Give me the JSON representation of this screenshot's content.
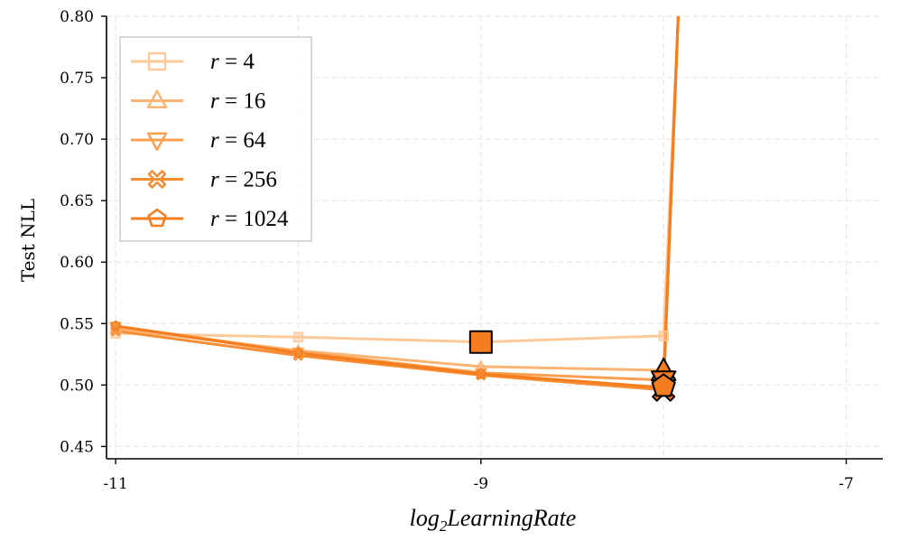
{
  "chart_data": {
    "type": "line",
    "xlabel": "log2LearningRate",
    "xlabel_parts": {
      "base": "log",
      "sub": "2",
      "rest": "LearningRate"
    },
    "ylabel": "Test NLL",
    "xlim": [
      -11.05,
      -6.8
    ],
    "ylim": [
      0.44,
      0.8
    ],
    "x_ticks": [
      -11,
      -9,
      -7
    ],
    "x_tick_labels": [
      "-11",
      "-9",
      "-7"
    ],
    "y_ticks": [
      0.45,
      0.5,
      0.55,
      0.6,
      0.65,
      0.7,
      0.75,
      0.8
    ],
    "y_tick_labels": [
      "0.45",
      "0.50",
      "0.55",
      "0.60",
      "0.65",
      "0.70",
      "0.75",
      "0.80"
    ],
    "grid": true,
    "legend_position": "top-left",
    "series": [
      {
        "name": "r = 4",
        "legend_var": "r",
        "legend_val": "4",
        "marker": "square",
        "color": "#fdc99a",
        "points": [
          [
            -11,
            0.542
          ],
          [
            -10,
            0.539
          ],
          [
            -9,
            0.535
          ],
          [
            -8,
            0.54
          ],
          [
            -7.92,
            0.8
          ]
        ]
      },
      {
        "name": "r = 16",
        "legend_var": "r",
        "legend_val": "16",
        "marker": "triangle-up",
        "color": "#fbb474",
        "points": [
          [
            -11,
            0.546
          ],
          [
            -10,
            0.528
          ],
          [
            -9,
            0.515
          ],
          [
            -8,
            0.512
          ],
          [
            -7.92,
            0.8
          ]
        ]
      },
      {
        "name": "r = 64",
        "legend_var": "r",
        "legend_val": "64",
        "marker": "triangle-down",
        "color": "#f9a050",
        "points": [
          [
            -11,
            0.548
          ],
          [
            -10,
            0.527
          ],
          [
            -9,
            0.51
          ],
          [
            -8,
            0.504
          ],
          [
            -7.92,
            0.8
          ]
        ]
      },
      {
        "name": "r = 256",
        "legend_var": "r",
        "legend_val": "256",
        "marker": "x-thick",
        "color": "#f78d32",
        "points": [
          [
            -11,
            0.544
          ],
          [
            -10,
            0.524
          ],
          [
            -9,
            0.508
          ],
          [
            -8,
            0.496
          ],
          [
            -7.92,
            0.8
          ]
        ]
      },
      {
        "name": "r = 1024",
        "legend_var": "r",
        "legend_val": "1024",
        "marker": "pentagon",
        "color": "#f47d20",
        "points": [
          [
            -11,
            0.548
          ],
          [
            -10,
            0.526
          ],
          [
            -9,
            0.509
          ],
          [
            -8,
            0.498
          ],
          [
            -7.92,
            0.8
          ]
        ]
      }
    ],
    "best_markers": [
      {
        "series": "r = 4",
        "x": -9,
        "y": 0.535,
        "marker": "square",
        "color": "#f47d20"
      },
      {
        "series": "r = 16",
        "x": -8,
        "y": 0.511,
        "marker": "triangle-up",
        "color": "#f47d20"
      },
      {
        "series": "r = 64",
        "x": -8,
        "y": 0.504,
        "marker": "triangle-down",
        "color": "#f47d20"
      },
      {
        "series": "r = 256",
        "x": -8,
        "y": 0.496,
        "marker": "x-thick",
        "color": "#f47d20"
      },
      {
        "series": "r = 1024",
        "x": -8,
        "y": 0.499,
        "marker": "pentagon",
        "color": "#f47d20"
      }
    ]
  }
}
